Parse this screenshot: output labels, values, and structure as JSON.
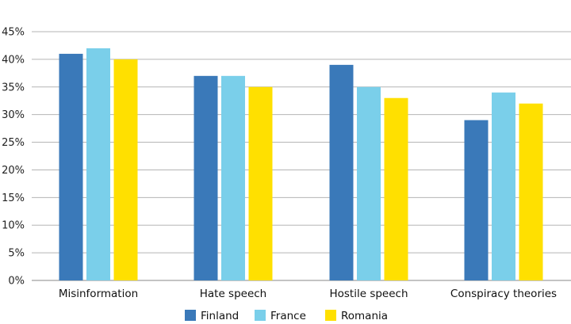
{
  "chart_data": {
    "type": "bar",
    "title": "",
    "xlabel": "",
    "ylabel": "",
    "categories": [
      "Misinformation",
      "Hate speech",
      "Hostile speech",
      "Conspiracy theories"
    ],
    "series": [
      {
        "name": "Finland",
        "color": "#3a79b9",
        "values": [
          41,
          37,
          39,
          29
        ]
      },
      {
        "name": "France",
        "color": "#7acfea",
        "values": [
          42,
          37,
          35,
          34
        ]
      },
      {
        "name": "Romania",
        "color": "#ffe000",
        "values": [
          40,
          35,
          33,
          32
        ]
      }
    ],
    "ylim": [
      0,
      45
    ],
    "yticks": [
      0,
      5,
      10,
      15,
      20,
      25,
      30,
      35,
      40,
      45
    ],
    "ytick_labels": [
      "0%",
      "5%",
      "10%",
      "15%",
      "20%",
      "25%",
      "30%",
      "35%",
      "40%",
      "45%"
    ],
    "grid": true,
    "legend_position": "bottom"
  }
}
